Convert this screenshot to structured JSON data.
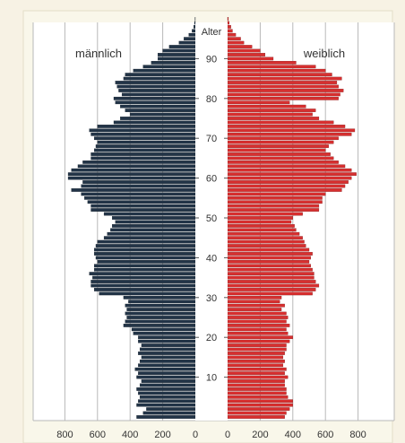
{
  "chart_data": {
    "type": "bar",
    "orientation": "horizontal",
    "subtype": "population-pyramid",
    "center_label": "Alter",
    "left_title": "männlich",
    "right_title": "weiblich",
    "age_ticks": [
      "10",
      "20",
      "30",
      "40",
      "50",
      "60",
      "70",
      "80",
      "90"
    ],
    "value_ticks": [
      "800",
      "600",
      "400",
      "200",
      "0",
      "0",
      "200",
      "400",
      "600",
      "800"
    ],
    "xlim": [
      0,
      1000
    ],
    "ylim": [
      0,
      100
    ],
    "grid": true,
    "colors": {
      "male": "#223447",
      "female": "#d72f2f",
      "grid": "#b8b8b8",
      "plot_bg": "#ffffff",
      "page_bg": "#f7f2e4"
    },
    "ages": [
      0,
      1,
      2,
      3,
      4,
      5,
      6,
      7,
      8,
      9,
      10,
      11,
      12,
      13,
      14,
      15,
      16,
      17,
      18,
      19,
      20,
      21,
      22,
      23,
      24,
      25,
      26,
      27,
      28,
      29,
      30,
      31,
      32,
      33,
      34,
      35,
      36,
      37,
      38,
      39,
      40,
      41,
      42,
      43,
      44,
      45,
      46,
      47,
      48,
      49,
      50,
      51,
      52,
      53,
      54,
      55,
      56,
      57,
      58,
      59,
      60,
      61,
      62,
      63,
      64,
      65,
      66,
      67,
      68,
      69,
      70,
      71,
      72,
      73,
      74,
      75,
      76,
      77,
      78,
      79,
      80,
      81,
      82,
      83,
      84,
      85,
      86,
      87,
      88,
      89,
      90,
      91,
      92,
      93,
      94,
      95,
      96,
      97,
      98,
      99,
      100
    ],
    "series": [
      {
        "name": "männlich",
        "values": [
          360,
          320,
          300,
          360,
          350,
          340,
          350,
          360,
          340,
          330,
          360,
          350,
          370,
          350,
          340,
          330,
          350,
          340,
          330,
          350,
          350,
          380,
          390,
          440,
          430,
          420,
          430,
          420,
          430,
          410,
          440,
          590,
          620,
          640,
          640,
          630,
          650,
          620,
          620,
          600,
          610,
          620,
          620,
          610,
          600,
          560,
          540,
          520,
          510,
          490,
          510,
          560,
          640,
          640,
          660,
          680,
          700,
          760,
          700,
          690,
          780,
          780,
          760,
          720,
          690,
          640,
          640,
          620,
          610,
          600,
          620,
          640,
          650,
          600,
          500,
          460,
          400,
          430,
          460,
          490,
          500,
          450,
          470,
          480,
          490,
          440,
          430,
          380,
          320,
          270,
          230,
          230,
          200,
          160,
          100,
          70,
          40,
          20,
          10,
          5,
          2
        ]
      },
      {
        "name": "weiblich",
        "values": [
          350,
          360,
          380,
          400,
          400,
          370,
          360,
          360,
          350,
          350,
          370,
          350,
          360,
          340,
          350,
          340,
          350,
          360,
          360,
          380,
          400,
          370,
          360,
          380,
          360,
          370,
          360,
          330,
          350,
          320,
          330,
          520,
          540,
          560,
          540,
          530,
          530,
          520,
          510,
          500,
          510,
          520,
          500,
          480,
          470,
          460,
          440,
          420,
          410,
          390,
          400,
          460,
          560,
          560,
          580,
          580,
          600,
          700,
          720,
          740,
          760,
          790,
          760,
          720,
          680,
          650,
          630,
          600,
          620,
          650,
          680,
          760,
          780,
          720,
          650,
          560,
          520,
          540,
          480,
          380,
          680,
          690,
          710,
          680,
          670,
          700,
          640,
          600,
          540,
          420,
          280,
          230,
          200,
          150,
          100,
          80,
          50,
          30,
          20,
          10,
          5
        ]
      }
    ]
  }
}
